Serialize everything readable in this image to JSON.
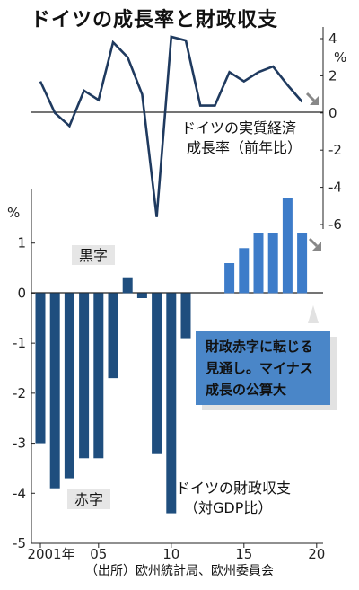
{
  "title": "ドイツの成長率と財政収支",
  "chart_data": [
    {
      "type": "line",
      "name": "gdp-growth",
      "label_lines": [
        "ドイツの実質経済",
        "成長率（前年比）"
      ],
      "x": [
        2001,
        2002,
        2003,
        2004,
        2005,
        2006,
        2007,
        2008,
        2009,
        2010,
        2011,
        2012,
        2013,
        2014,
        2015,
        2016,
        2017,
        2018,
        2019
      ],
      "y": [
        1.7,
        0.0,
        -0.7,
        1.2,
        0.7,
        3.8,
        3.0,
        1.0,
        -5.6,
        4.1,
        3.9,
        0.4,
        0.4,
        2.2,
        1.7,
        2.2,
        2.5,
        1.5,
        0.6
      ],
      "y_unit": "%",
      "ylim": [
        -6,
        4
      ],
      "yticks": [
        "4",
        "2",
        "0",
        "-2",
        "-4",
        "-6"
      ],
      "forecast_arrow": "down"
    },
    {
      "type": "bar",
      "name": "fiscal-balance",
      "label_lines": [
        "ドイツの財政収支",
        "（対GDP比）"
      ],
      "x": [
        2001,
        2002,
        2003,
        2004,
        2005,
        2006,
        2007,
        2008,
        2009,
        2010,
        2011,
        2012,
        2013,
        2014,
        2015,
        2016,
        2017,
        2018,
        2019
      ],
      "values": [
        -3.0,
        -3.9,
        -3.7,
        -3.3,
        -3.3,
        -1.7,
        0.3,
        -0.1,
        -3.2,
        -4.4,
        -0.9,
        null,
        null,
        0.6,
        0.9,
        1.2,
        1.2,
        1.9,
        1.2
      ],
      "y_unit": "%",
      "ylim": [
        -5,
        2
      ],
      "yticks": [
        "1",
        "0",
        "-1",
        "-2",
        "-3",
        "-4",
        "-5"
      ],
      "xticks": [
        "2001年",
        "05",
        "10",
        "15",
        "20"
      ],
      "surplus_label": "黒字",
      "deficit_label": "赤字",
      "forecast_arrow": "down"
    }
  ],
  "callout": [
    "財政赤字に転じる",
    "見通し。マイナス",
    "成長の公算大"
  ],
  "source": "（出所）欧州統計局、欧州委員会",
  "colors": {
    "line": "#1f3a5f",
    "bar_actual": "#1f4e7e",
    "bar_forecast": "#3d7cc9",
    "callout_bg": "#4a86c8",
    "shade": "#e6e6e6",
    "arrow": "#888888"
  }
}
